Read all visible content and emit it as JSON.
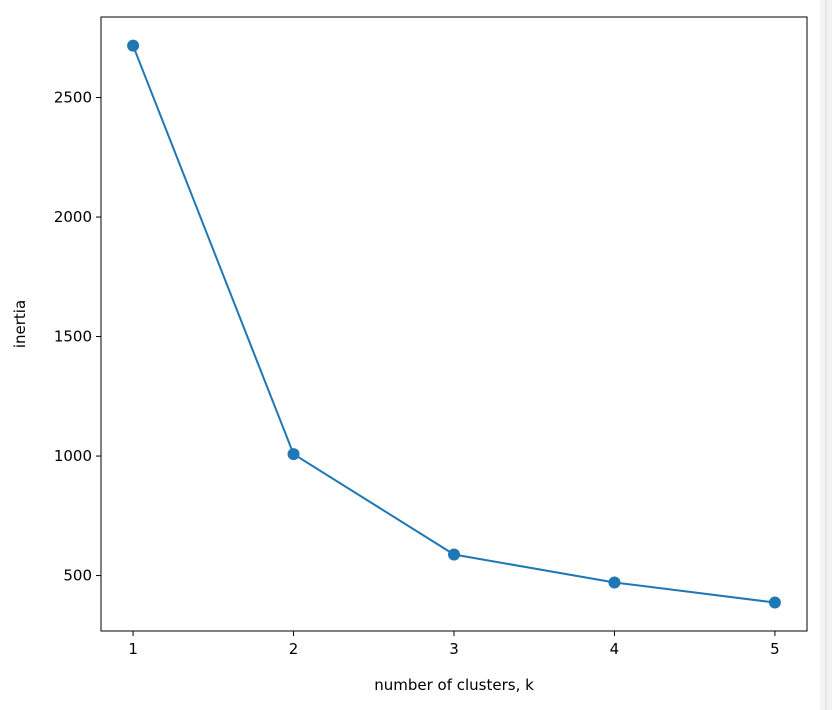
{
  "chart_data": {
    "type": "line",
    "xlabel": "number of clusters, k",
    "ylabel": "inertia",
    "x": [
      1,
      2,
      3,
      4,
      5
    ],
    "series": [
      {
        "color": "#1f77b4",
        "values": [
          2717,
          1008,
          588,
          471,
          387
        ]
      }
    ],
    "xlim": [
      0.8,
      5.2
    ],
    "xticks": [
      1,
      2,
      3,
      4,
      5
    ],
    "ylim": [
      268,
      2837
    ],
    "yticks": [
      500,
      1000,
      1500,
      2000,
      2500
    ],
    "markers": true,
    "grid": false
  }
}
